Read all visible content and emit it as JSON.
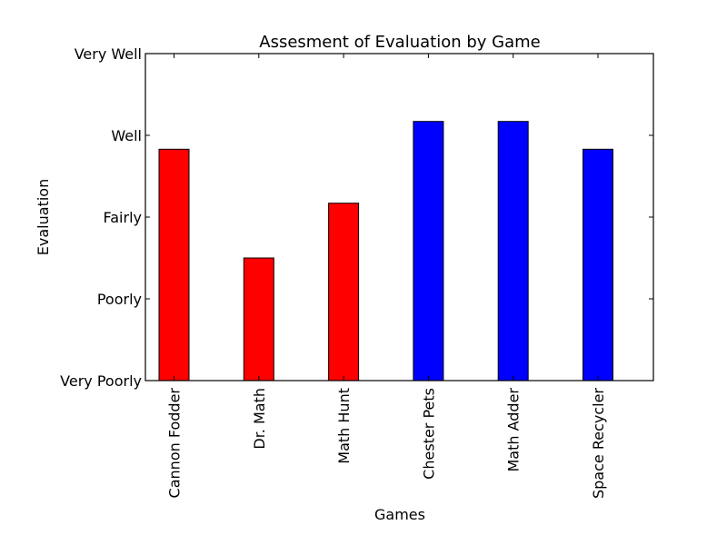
{
  "chart_data": {
    "type": "bar",
    "title": "Assesment of Evaluation by Game",
    "xlabel": "Games",
    "ylabel": "Evaluation",
    "categories": [
      "Cannon Fodder",
      "Dr. Math",
      "Math Hunt",
      "Chester Pets",
      "Math Adder",
      "Space Recycler"
    ],
    "values": [
      2.83,
      1.5,
      2.17,
      3.17,
      3.17,
      2.83
    ],
    "bar_colors": [
      "#ff0000",
      "#ff0000",
      "#ff0000",
      "#0000ff",
      "#0000ff",
      "#0000ff"
    ],
    "yticks": [
      0,
      1,
      2,
      3,
      4
    ],
    "ytick_labels": [
      "Very Poorly",
      "Poorly",
      "Fairly",
      "Well",
      "Very Well"
    ],
    "ylim": [
      0,
      4
    ],
    "grid": false,
    "legend": "none"
  }
}
